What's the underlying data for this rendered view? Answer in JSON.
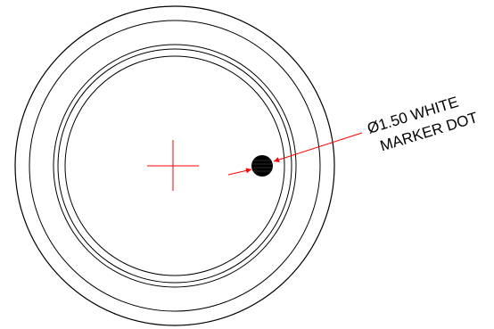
{
  "drawing": {
    "callout_line1": "Ø1.50 WHITE",
    "callout_line2": "MARKER DOT"
  },
  "colors": {
    "outline": "#000000",
    "centermark": "#ff0000",
    "leader": "#ff0000",
    "dot": "#000000"
  }
}
